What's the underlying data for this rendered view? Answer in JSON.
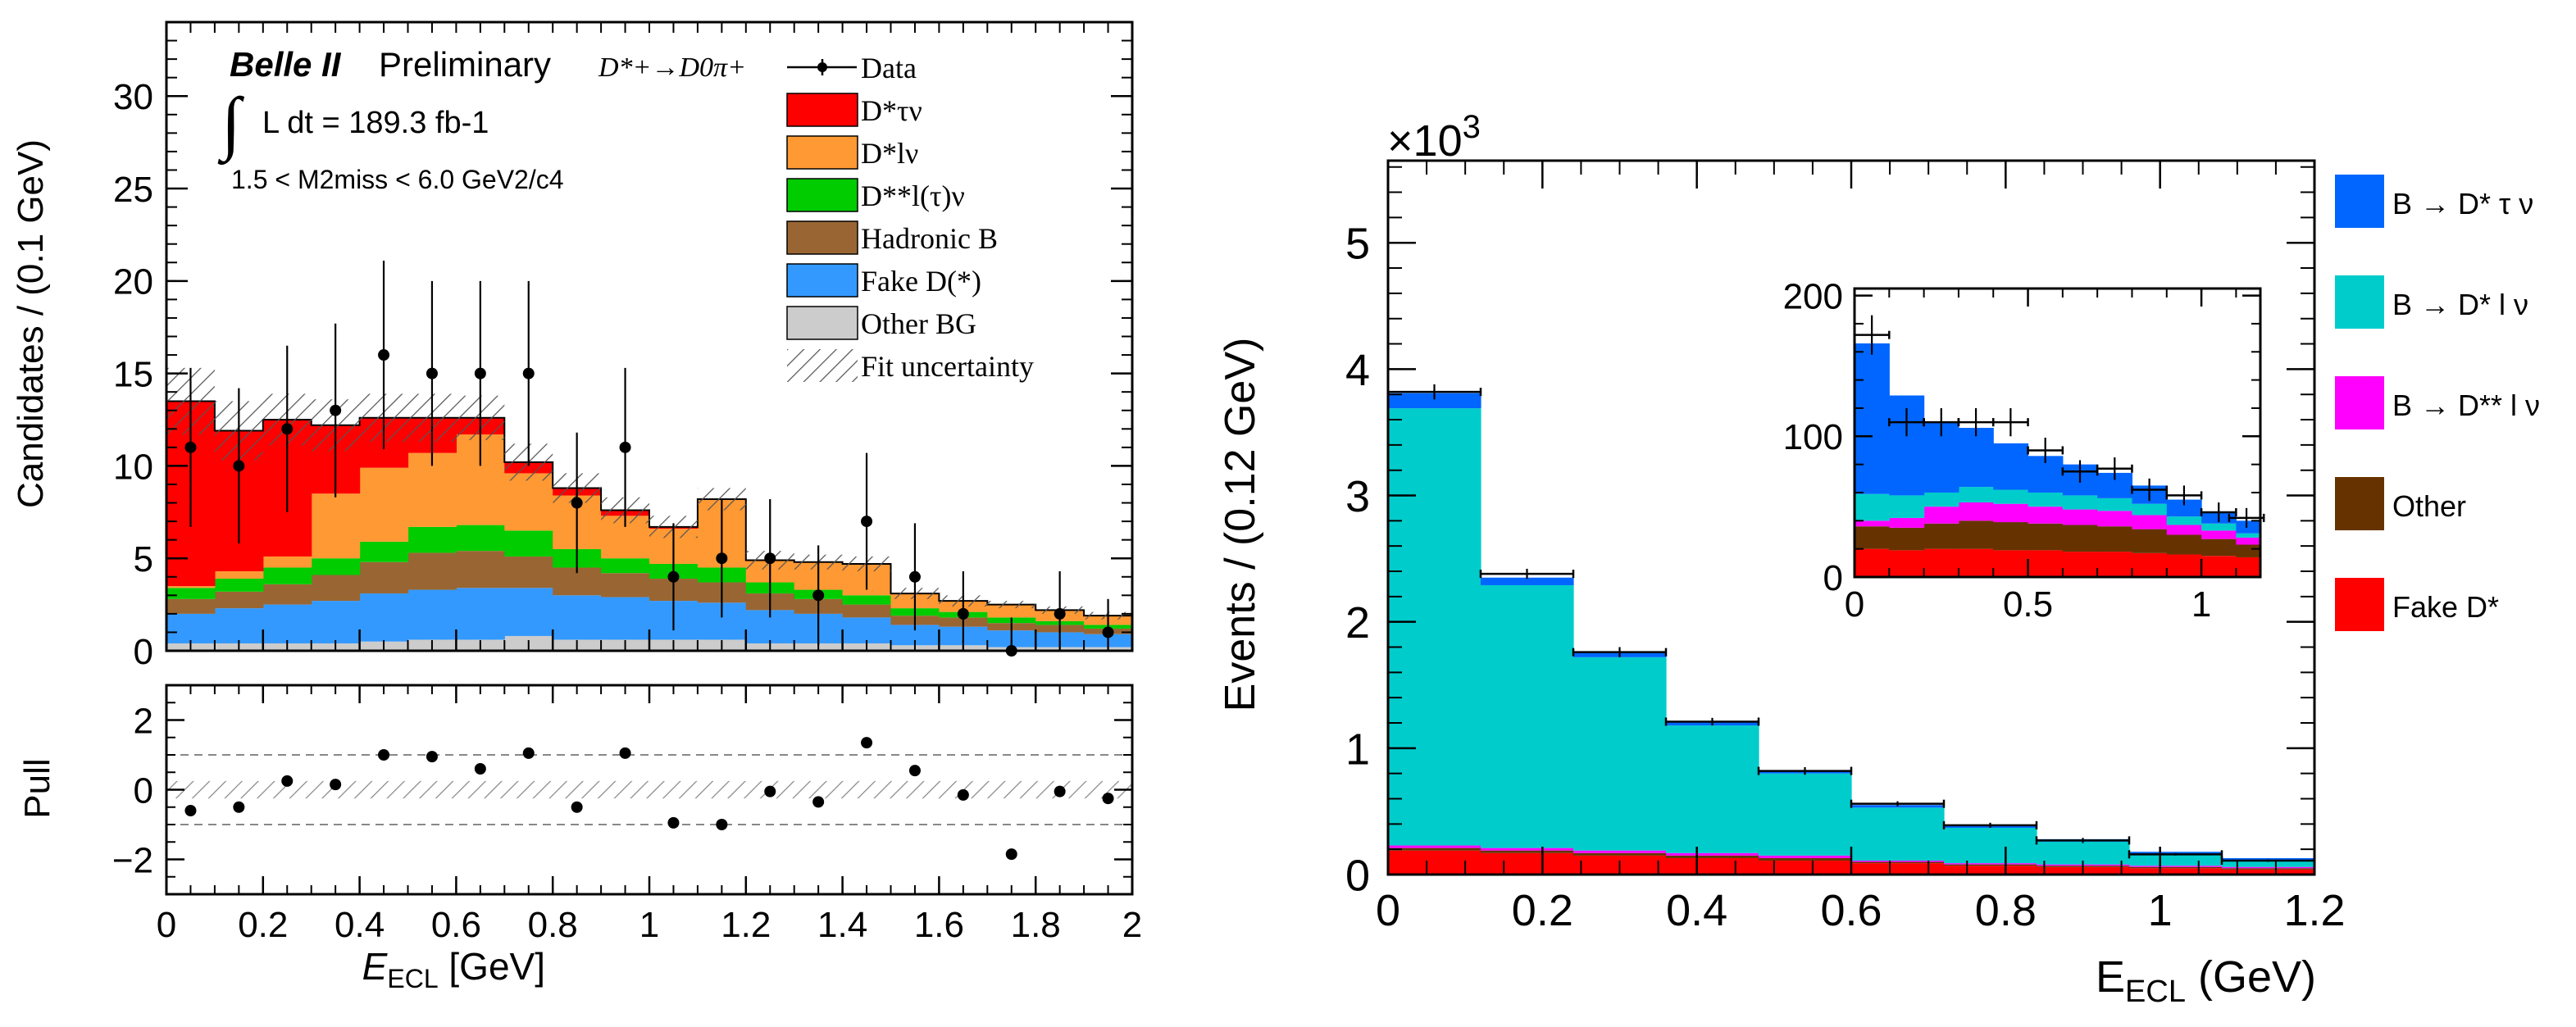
{
  "chart_data": [
    {
      "type": "bar",
      "panel": "left-main",
      "title": "Belle II",
      "subtitle": "Preliminary",
      "decay": "D*+→D0π+",
      "lumi_text": "L dt = 189.3 fb-1",
      "cut_text": "1.5 < M2miss < 6.0 GeV2/c4",
      "xlabel": "EECL [GeV]",
      "ylabel": "Candidates / (0.1 GeV)",
      "xlim": [
        0,
        2
      ],
      "ylim": [
        0,
        34
      ],
      "xticks": [
        "0",
        "0.2",
        "0.4",
        "0.6",
        "0.8",
        "1",
        "1.2",
        "1.4",
        "1.6",
        "1.8",
        "2"
      ],
      "yticks": [
        "0",
        "5",
        "10",
        "15",
        "20",
        "25",
        "30"
      ],
      "legend_position": "top-right",
      "bin_edges": [
        0,
        0.1,
        0.2,
        0.3,
        0.4,
        0.5,
        0.6,
        0.7,
        0.8,
        0.9,
        1.0,
        1.1,
        1.2,
        1.3,
        1.4,
        1.5,
        1.6,
        1.7,
        1.8,
        1.9,
        2.0
      ],
      "stack_order": [
        "Other BG",
        "Fake D(*)",
        "Hadronic B",
        "D**l(τ)ν",
        "D*lν",
        "D*τν"
      ],
      "colors": {
        "D*τν": "#ff0000",
        "D*lν": "#ff9933",
        "D**l(τ)ν": "#00cc00",
        "Hadronic B": "#996633",
        "Fake D(*)": "#3399ff",
        "Other BG": "#cccccc",
        "Data": "#000000"
      },
      "series": [
        {
          "name": "Other BG",
          "values": [
            0.4,
            0.4,
            0.4,
            0.4,
            0.5,
            0.6,
            0.6,
            0.8,
            0.6,
            0.6,
            0.6,
            0.6,
            0.4,
            0.4,
            0.4,
            0.3,
            0.3,
            0.2,
            0.2,
            0.2
          ]
        },
        {
          "name": "Fake D(*)",
          "values": [
            1.6,
            1.9,
            2.1,
            2.3,
            2.6,
            2.7,
            2.8,
            2.6,
            2.4,
            2.3,
            2.1,
            2.0,
            1.8,
            1.6,
            1.4,
            1.1,
            1.0,
            0.9,
            0.8,
            0.7
          ]
        },
        {
          "name": "Hadronic B",
          "values": [
            0.8,
            0.9,
            1.1,
            1.4,
            1.7,
            2.0,
            2.0,
            1.7,
            1.5,
            1.3,
            1.2,
            1.1,
            0.9,
            0.8,
            0.7,
            0.5,
            0.5,
            0.4,
            0.4,
            0.3
          ]
        },
        {
          "name": "D**l(τ)ν",
          "values": [
            0.6,
            0.7,
            0.9,
            0.9,
            1.1,
            1.4,
            1.4,
            1.4,
            1.0,
            0.8,
            0.8,
            0.8,
            0.6,
            0.5,
            0.5,
            0.4,
            0.3,
            0.3,
            0.2,
            0.2
          ]
        },
        {
          "name": "D*lν",
          "values": [
            0.1,
            0.4,
            0.6,
            3.5,
            4.0,
            4.0,
            4.9,
            3.1,
            2.9,
            2.3,
            1.9,
            3.7,
            1.2,
            1.5,
            1.7,
            0.8,
            0.6,
            0.7,
            0.6,
            0.5
          ]
        },
        {
          "name": "D*τν",
          "values": [
            10.0,
            7.6,
            7.4,
            3.7,
            2.7,
            1.9,
            0.9,
            0.6,
            0.4,
            0.3,
            0.1,
            0.0,
            0.0,
            0.0,
            0.0,
            0.0,
            0.0,
            0.0,
            0.0,
            0.0
          ]
        }
      ],
      "total_uncertainty": [
        1.8,
        1.6,
        1.4,
        1.4,
        1.3,
        1.3,
        1.2,
        1.0,
        0.8,
        0.7,
        0.6,
        0.6,
        0.5,
        0.4,
        0.4,
        0.3,
        0.3,
        0.2,
        0.2,
        0.2
      ],
      "data": {
        "name": "Data",
        "x": [
          0.05,
          0.15,
          0.25,
          0.35,
          0.45,
          0.55,
          0.65,
          0.75,
          0.85,
          0.95,
          1.05,
          1.15,
          1.25,
          1.35,
          1.45,
          1.55,
          1.65,
          1.75,
          1.85,
          1.95
        ],
        "y": [
          11,
          10,
          12,
          13,
          16,
          15,
          15,
          15,
          8,
          11,
          4,
          5,
          5,
          3,
          7,
          4,
          2,
          0,
          2,
          1
        ],
        "yerr": [
          4.3,
          4.2,
          4.5,
          4.7,
          5.1,
          5.0,
          5.0,
          5.0,
          3.8,
          4.3,
          2.9,
          3.2,
          3.2,
          2.7,
          3.7,
          2.9,
          2.3,
          1.8,
          2.3,
          1.8
        ]
      },
      "legend": [
        "Data",
        "D*τν",
        "D*lν",
        "D**l(τ)ν",
        "Hadronic B",
        "Fake D(*)",
        "Other BG",
        "Fit uncertainty"
      ]
    },
    {
      "type": "scatter",
      "panel": "left-pull",
      "ylabel": "Pull",
      "xlabel": "EECL [GeV]",
      "xlim": [
        0,
        2
      ],
      "ylim": [
        -3,
        3
      ],
      "yticks": [
        "−2",
        "0",
        "2"
      ],
      "x": [
        0.05,
        0.15,
        0.25,
        0.35,
        0.45,
        0.55,
        0.65,
        0.75,
        0.85,
        0.95,
        1.05,
        1.15,
        1.25,
        1.35,
        1.45,
        1.55,
        1.65,
        1.75,
        1.85,
        1.95
      ],
      "y": [
        -0.6,
        -0.5,
        0.25,
        0.15,
        1.0,
        0.95,
        0.6,
        1.05,
        -0.5,
        1.05,
        -0.95,
        -1.0,
        -0.05,
        -0.35,
        1.35,
        0.55,
        -0.15,
        -1.85,
        -0.05,
        -0.25
      ]
    },
    {
      "type": "bar",
      "panel": "right-main",
      "xlabel": "EECL (GeV)",
      "ylabel": "Events / (0.12 GeV)",
      "scale_label": "×10",
      "scale_exponent": "3",
      "xlim": [
        0,
        1.2
      ],
      "ylim": [
        0,
        5.65
      ],
      "xticks": [
        "0",
        "0.2",
        "0.4",
        "0.6",
        "0.8",
        "1",
        "1.2"
      ],
      "yticks": [
        "0",
        "1",
        "2",
        "3",
        "4",
        "5"
      ],
      "legend_position": "right",
      "bin_edges": [
        0,
        0.12,
        0.24,
        0.36,
        0.48,
        0.6,
        0.72,
        0.84,
        0.96,
        1.08,
        1.2
      ],
      "stack_order": [
        "Fake D*",
        "Other",
        "B → D** l ν",
        "B → D* l ν",
        "B → D* τ ν"
      ],
      "colors": {
        "B → D* τ ν": "#0066ff",
        "B → D* l ν": "#00cccc",
        "B → D** l ν": "#ff00ff",
        "Other": "#663300",
        "Fake D*": "#ff0000"
      },
      "series": [
        {
          "name": "Fake D*",
          "values": [
            0.19,
            0.17,
            0.15,
            0.13,
            0.11,
            0.09,
            0.07,
            0.06,
            0.05,
            0.04
          ]
        },
        {
          "name": "Other",
          "values": [
            0.02,
            0.02,
            0.02,
            0.02,
            0.02,
            0.01,
            0.01,
            0.01,
            0.01,
            0.01
          ]
        },
        {
          "name": "B → D** l ν",
          "values": [
            0.02,
            0.02,
            0.02,
            0.02,
            0.02,
            0.01,
            0.01,
            0.01,
            0.01,
            0.01
          ]
        },
        {
          "name": "B → D* l ν",
          "values": [
            3.46,
            2.08,
            1.53,
            1.01,
            0.65,
            0.42,
            0.28,
            0.18,
            0.09,
            0.05
          ]
        },
        {
          "name": "B → D* τ ν",
          "values": [
            0.12,
            0.06,
            0.04,
            0.03,
            0.02,
            0.02,
            0.02,
            0.02,
            0.02,
            0.02
          ]
        }
      ],
      "data": {
        "x": [
          0.06,
          0.18,
          0.3,
          0.42,
          0.54,
          0.66,
          0.78,
          0.9,
          1.02,
          1.14
        ],
        "y": [
          3.82,
          2.38,
          1.76,
          1.21,
          0.82,
          0.56,
          0.39,
          0.27,
          0.16,
          0.11
        ],
        "yerr": [
          0.06,
          0.04,
          0.04,
          0.03,
          0.03,
          0.02,
          0.02,
          0.02,
          0.01,
          0.01
        ]
      },
      "legend": [
        "B → D* τ ν",
        "B → D* l ν",
        "B → D** l ν",
        "Other",
        "Fake D*"
      ]
    },
    {
      "type": "bar",
      "panel": "right-inset",
      "xlim": [
        0,
        1.17
      ],
      "ylim": [
        0,
        205
      ],
      "xticks": [
        "0",
        "0.5",
        "1"
      ],
      "yticks": [
        "0",
        "100",
        "200"
      ],
      "bin_edges": [
        0,
        0.1,
        0.2,
        0.3,
        0.4,
        0.5,
        0.6,
        0.7,
        0.8,
        0.9,
        1.0,
        1.1,
        1.17
      ],
      "stack_order": [
        "Fake D*",
        "Other",
        "B → D** l ν",
        "B → D* l ν",
        "B → D* τ ν"
      ],
      "series": [
        {
          "name": "Fake D*",
          "values": [
            20,
            19,
            20,
            20,
            19,
            19,
            18,
            18,
            17,
            16,
            15,
            14
          ]
        },
        {
          "name": "Other",
          "values": [
            16,
            16,
            18,
            20,
            20,
            19,
            19,
            18,
            17,
            14,
            12,
            9
          ]
        },
        {
          "name": "B → D** l ν",
          "values": [
            4,
            7,
            12,
            13,
            13,
            12,
            11,
            11,
            10,
            7,
            6,
            5
          ]
        },
        {
          "name": "B → D* l ν",
          "values": [
            19,
            16,
            10,
            11,
            10,
            10,
            10,
            9,
            8,
            6,
            5,
            3
          ]
        },
        {
          "name": "B → D* τ ν",
          "values": [
            107,
            71,
            50,
            42,
            33,
            26,
            22,
            18,
            13,
            12,
            8,
            9
          ]
        }
      ],
      "data": {
        "x": [
          0.05,
          0.15,
          0.25,
          0.35,
          0.45,
          0.55,
          0.65,
          0.75,
          0.85,
          0.95,
          1.05,
          1.13
        ],
        "y": [
          172,
          110,
          110,
          110,
          110,
          90,
          75,
          77,
          62,
          58,
          46,
          42
        ],
        "yerr": [
          14,
          10,
          10,
          10,
          10,
          9,
          8,
          8,
          8,
          7,
          7,
          7
        ]
      }
    }
  ]
}
